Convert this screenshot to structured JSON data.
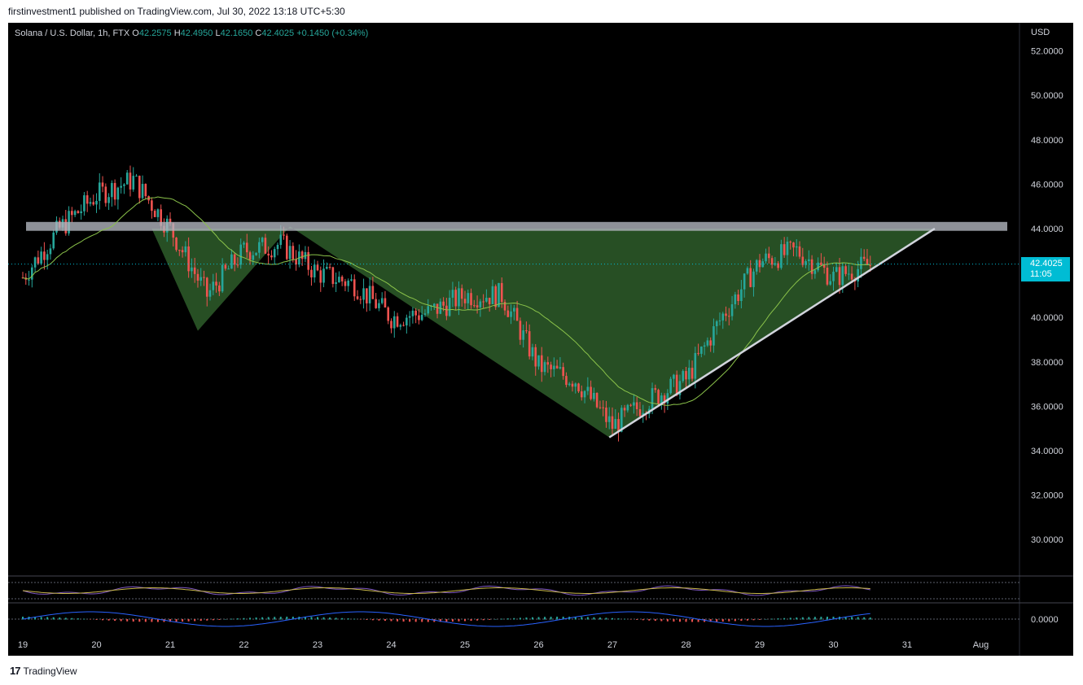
{
  "header": {
    "publisher_line": "firstinvestment1 published on TradingView.com, Jul 30, 2022 13:18 UTC+5:30"
  },
  "legend": {
    "symbol": "Solana / U.S. Dollar, 1h, FTX",
    "open_label": "O",
    "open": "42.2575",
    "high_label": "H",
    "high": "42.4950",
    "low_label": "L",
    "low": "42.1650",
    "close_label": "C",
    "close": "42.4025",
    "change": "+0.1450 (+0.34%)"
  },
  "axis": {
    "currency": "USD",
    "last_price": "42.4025",
    "countdown": "11:05",
    "price_ticks": [
      "52.0000",
      "50.0000",
      "48.0000",
      "46.0000",
      "44.0000",
      "42.4025",
      "40.0000",
      "38.0000",
      "36.0000",
      "34.0000",
      "32.0000",
      "30.0000"
    ],
    "osc_tick": "0.0000",
    "time_ticks": [
      "19",
      "20",
      "21",
      "22",
      "23",
      "24",
      "25",
      "26",
      "27",
      "28",
      "29",
      "30",
      "31",
      "Aug"
    ]
  },
  "footer": {
    "brand": "TradingView",
    "logo_glyph": "17"
  },
  "colors": {
    "bull": "#26a69a",
    "bear": "#ef5350",
    "pattern_fill": "#2e5d2a",
    "resistance": "#b2b5be",
    "trendline": "#d1d4dc",
    "ma": "#8bc34a",
    "last_price": "#00bcd4"
  },
  "chart_data": {
    "type": "line",
    "instrument": "Solana / U.S. Dollar",
    "interval": "1h",
    "exchange": "FTX",
    "ylim": [
      28,
      53
    ],
    "xlim": [
      "Jul 19",
      "Aug 1"
    ],
    "x": [
      "Jul 19 00:00",
      "Jul 19 12:00",
      "Jul 20 00:00",
      "Jul 20 12:00",
      "Jul 21 00:00",
      "Jul 21 12:00",
      "Jul 22 00:00",
      "Jul 22 12:00",
      "Jul 23 00:00",
      "Jul 23 12:00",
      "Jul 24 00:00",
      "Jul 24 12:00",
      "Jul 25 00:00",
      "Jul 25 12:00",
      "Jul 26 00:00",
      "Jul 26 12:00",
      "Jul 27 00:00",
      "Jul 27 12:00",
      "Jul 28 00:00",
      "Jul 28 12:00",
      "Jul 29 00:00",
      "Jul 29 12:00",
      "Jul 30 00:00",
      "Jul 30 12:00"
    ],
    "series": [
      {
        "values": [
          41.8,
          44.0,
          45.5,
          46.2,
          44.0,
          41.0,
          43.0,
          43.3,
          42.0,
          41.5,
          40.0,
          40.2,
          41.0,
          41.0,
          37.8,
          37.2,
          35.1,
          36.3,
          37.2,
          40.1,
          42.5,
          43.0,
          41.8,
          42.4
        ]
      }
    ],
    "resistance_zone": [
      43.9,
      44.3
    ],
    "pattern_points": [
      {
        "x": "Jul 20 18:00",
        "y": 44.0
      },
      {
        "x": "Jul 21 09:00",
        "y": 39.4
      },
      {
        "x": "Jul 22 15:00",
        "y": 44.1
      },
      {
        "x": "Jul 26 23:00",
        "y": 34.6
      },
      {
        "x": "Jul 31 09:00",
        "y": 44.0
      }
    ],
    "trendline": [
      {
        "x": "Jul 26 23:00",
        "y": 34.6
      },
      {
        "x": "Jul 31 09:00",
        "y": 44.0
      }
    ],
    "last_price": 42.4025,
    "oscillator_zero": 0.0
  }
}
